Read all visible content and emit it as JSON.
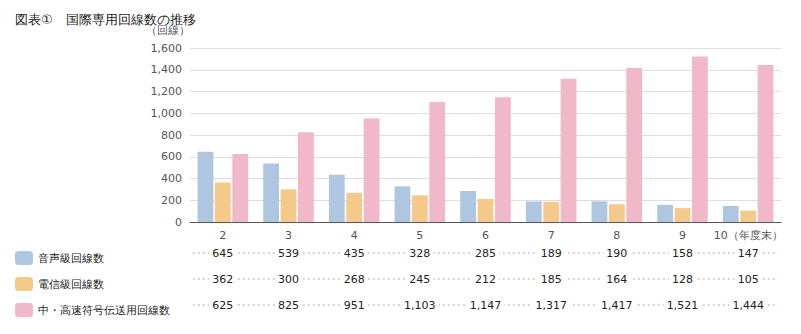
{
  "chart_data": {
    "type": "bar",
    "title": "図表①　国際専用回線数の推移",
    "ylabel": "（回線）",
    "categories": [
      "2",
      "3",
      "4",
      "5",
      "6",
      "7",
      "8",
      "9",
      "10（年度末）"
    ],
    "series": [
      {
        "name": "音声級回線数",
        "color": "#aec6e0",
        "values": [
          645,
          539,
          435,
          328,
          285,
          189,
          190,
          158,
          147
        ],
        "value_labels": [
          "645",
          "539",
          "435",
          "328",
          "285",
          "189",
          "190",
          "158",
          "147"
        ]
      },
      {
        "name": "電信級回線数",
        "color": "#f5c98a",
        "values": [
          362,
          300,
          268,
          245,
          212,
          185,
          164,
          128,
          105
        ],
        "value_labels": [
          "362",
          "300",
          "268",
          "245",
          "212",
          "185",
          "164",
          "128",
          "105"
        ]
      },
      {
        "name": "中・高速符号伝送用回線数",
        "color": "#f0b8c8",
        "values": [
          625,
          825,
          951,
          1103,
          1147,
          1317,
          1417,
          1521,
          1444
        ],
        "value_labels": [
          "625",
          "825",
          "951",
          "1,103",
          "1,147",
          "1,317",
          "1,417",
          "1,521",
          "1,444"
        ]
      }
    ],
    "ylim": [
      0,
      1600
    ],
    "yticks": [
      0,
      200,
      400,
      600,
      800,
      {
        "value": 1000,
        "label": "1,000"
      },
      {
        "value": 1200,
        "label": "1,200"
      },
      {
        "value": 1400,
        "label": "1,400"
      },
      {
        "value": 1600,
        "label": "1,600"
      }
    ],
    "grid": true,
    "legend": "bottom"
  }
}
